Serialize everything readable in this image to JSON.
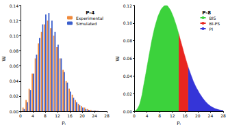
{
  "chart_data": [
    {
      "type": "bar",
      "title": "P-4",
      "x_label": "Pᵢ",
      "y_label": "Wᵢ",
      "x": [
        1,
        2,
        3,
        4,
        5,
        6,
        7,
        8,
        9,
        10,
        11,
        12,
        13,
        14,
        15,
        16,
        17,
        18,
        19,
        20,
        21,
        22,
        23,
        24,
        25
      ],
      "series": [
        {
          "name": "Experimental",
          "color": "#f08a3c",
          "values": [
            0.005,
            0.015,
            0.03,
            0.05,
            0.07,
            0.09,
            0.105,
            0.115,
            0.12,
            0.11,
            0.1,
            0.085,
            0.07,
            0.055,
            0.04,
            0.03,
            0.022,
            0.015,
            0.01,
            0.007,
            0.005,
            0.003,
            0.002,
            0.001,
            0.001
          ]
        },
        {
          "name": "Simulated",
          "color": "#3b5fcc",
          "values": [
            0.003,
            0.012,
            0.028,
            0.05,
            0.075,
            0.097,
            0.115,
            0.128,
            0.13,
            0.12,
            0.105,
            0.088,
            0.07,
            0.052,
            0.038,
            0.026,
            0.018,
            0.012,
            0.008,
            0.005,
            0.003,
            0.002,
            0.001,
            0.001,
            0.0005
          ]
        }
      ],
      "xlim": [
        0,
        28
      ],
      "xticks": [
        0,
        4,
        8,
        12,
        16,
        20,
        24,
        28
      ],
      "ylim": [
        0,
        0.14
      ],
      "yticks": [
        {
          "value": 0,
          "label": "0.00"
        },
        {
          "value": 0.02,
          "label": "0.02"
        },
        {
          "value": 0.04,
          "label": "0.04"
        },
        {
          "value": 0.06,
          "label": "0.06"
        },
        {
          "value": 0.08,
          "label": "0.08"
        },
        {
          "value": 0.1,
          "label": "0.10"
        },
        {
          "value": 0.12,
          "label": "0.12"
        },
        {
          "value": 0.14,
          "label": "0.14"
        }
      ],
      "grid": false,
      "legend": "upper right"
    },
    {
      "type": "area",
      "title": "P-8",
      "x_label": "Pᵢ",
      "y_label": "Wᵢ",
      "series": [
        {
          "name": "BIS",
          "color": "#3cd23c",
          "x": [
            0,
            1,
            2,
            3,
            4,
            5,
            6,
            7,
            8,
            9,
            10,
            11,
            12,
            13,
            14
          ],
          "values": [
            0,
            0.003,
            0.012,
            0.03,
            0.05,
            0.07,
            0.088,
            0.102,
            0.112,
            0.118,
            0.12,
            0.117,
            0.11,
            0.1,
            0.088
          ]
        },
        {
          "name": "BI-PS",
          "color": "#e8261f",
          "x": [
            14,
            15,
            16,
            17
          ],
          "values": [
            0.088,
            0.075,
            0.062,
            0.05
          ]
        },
        {
          "name": "PI",
          "color": "#3535d8",
          "x": [
            17,
            18,
            19,
            20,
            21,
            22,
            23,
            24,
            25,
            26,
            27,
            28
          ],
          "values": [
            0.05,
            0.04,
            0.031,
            0.024,
            0.018,
            0.013,
            0.009,
            0.006,
            0.004,
            0.0025,
            0.0015,
            0.001
          ]
        }
      ],
      "xlim": [
        0,
        28
      ],
      "xticks": [
        0,
        4,
        8,
        12,
        16,
        20,
        24,
        28
      ],
      "ylim": [
        0,
        0.12
      ],
      "yticks": [
        {
          "value": 0,
          "label": "0.00"
        },
        {
          "value": 0.02,
          "label": "0.02"
        },
        {
          "value": 0.04,
          "label": "0.04"
        },
        {
          "value": 0.06,
          "label": "0.06"
        },
        {
          "value": 0.08,
          "label": "0.08"
        },
        {
          "value": 0.1,
          "label": "0.10"
        },
        {
          "value": 0.12,
          "label": "0.12"
        }
      ],
      "grid": false,
      "legend": "upper right"
    }
  ]
}
